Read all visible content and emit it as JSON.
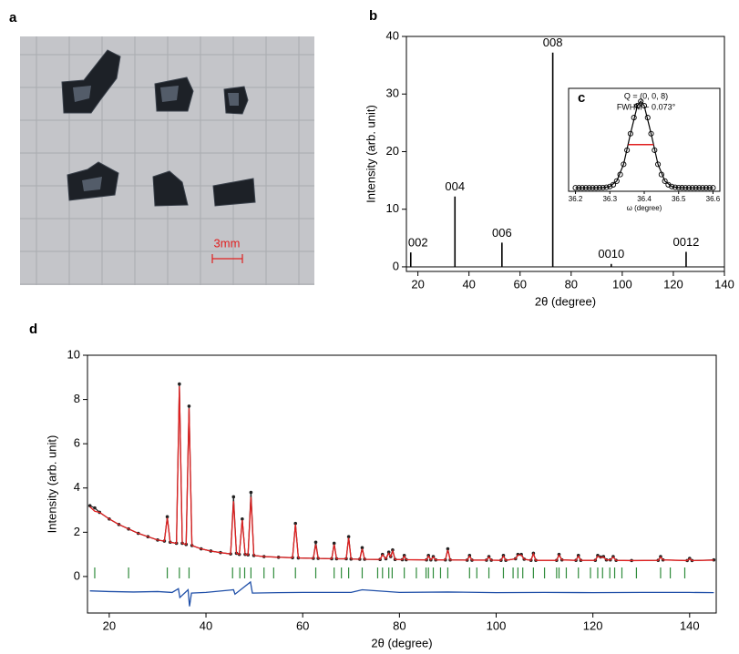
{
  "photo": {
    "panel": "a",
    "scale_label": "3mm"
  },
  "chart_data": [
    {
      "type": "stem",
      "panel": "b",
      "xlabel": "2θ (degree)",
      "ylabel": "Intensity (arb. unit)",
      "color": "#000000",
      "x": [
        17.2,
        34.5,
        52.9,
        72.8,
        95.7,
        125.0
      ],
      "values": [
        2.5,
        12.2,
        4.2,
        37.2,
        0.5,
        2.6
      ],
      "peak_labels": [
        "002",
        "004",
        "006",
        "008",
        "0010",
        "0012"
      ],
      "xlim": [
        15.5,
        140
      ],
      "ylim": [
        -0.8,
        40
      ],
      "xticks": [
        20,
        40,
        60,
        80,
        100,
        120,
        140
      ],
      "yticks": [
        0,
        10,
        20,
        30,
        40
      ]
    },
    {
      "type": "scatter",
      "panel": "c",
      "xlabel": "ω (degree)",
      "annotations": [
        "Q = (0, 0, 8)",
        "FWHM ~ 0.073°"
      ],
      "color": "#000000",
      "x": [
        36.2,
        36.21,
        36.22,
        36.23,
        36.24,
        36.25,
        36.26,
        36.27,
        36.28,
        36.29,
        36.3,
        36.31,
        36.32,
        36.33,
        36.34,
        36.35,
        36.36,
        36.37,
        36.38,
        36.39,
        36.4,
        36.41,
        36.42,
        36.43,
        36.44,
        36.45,
        36.46,
        36.47,
        36.48,
        36.49,
        36.5,
        36.51,
        36.52,
        36.53,
        36.54,
        36.55,
        36.56,
        36.57,
        36.58,
        36.59,
        36.6
      ],
      "values": [
        0,
        0,
        0,
        0,
        0,
        0,
        0,
        0.001,
        0.002,
        0.006,
        0.015,
        0.036,
        0.078,
        0.154,
        0.272,
        0.435,
        0.626,
        0.812,
        0.949,
        1,
        0.949,
        0.812,
        0.626,
        0.435,
        0.272,
        0.154,
        0.078,
        0.036,
        0.015,
        0.006,
        0.002,
        0.001,
        0,
        0,
        0,
        0,
        0,
        0,
        0,
        0,
        0
      ],
      "fit": {
        "color": "#000000",
        "x": [
          36.2,
          36.25,
          36.28,
          36.3,
          36.32,
          36.34,
          36.36,
          36.38,
          36.39,
          36.4,
          36.42,
          36.44,
          36.46,
          36.48,
          36.5,
          36.53,
          36.6
        ],
        "values": [
          0,
          0,
          0.002,
          0.015,
          0.078,
          0.272,
          0.626,
          0.949,
          1,
          0.949,
          0.626,
          0.272,
          0.078,
          0.015,
          0.002,
          0,
          0
        ]
      },
      "fwhm_marker": {
        "color": "#e02020",
        "x": [
          36.354,
          36.427
        ],
        "values": [
          0.5,
          0.5
        ]
      },
      "xlim": [
        36.18,
        36.62
      ],
      "ylim": [
        -0.04,
        1.15
      ],
      "xticks": [
        36.2,
        36.3,
        36.4,
        36.5,
        36.6
      ]
    },
    {
      "type": "line",
      "panel": "d",
      "xlabel": "2θ (degree)",
      "ylabel": "Intensity (arb. unit)",
      "observed": {
        "color": "#222222",
        "x": [
          16,
          17,
          18,
          20,
          22,
          24,
          26,
          28,
          30,
          31.4,
          32,
          32.6,
          33.9,
          34.5,
          35.1,
          35.9,
          36.5,
          37.1,
          39,
          41,
          43,
          45.1,
          45.7,
          46.3,
          46.9,
          47.5,
          48.1,
          48.7,
          49.3,
          49.9,
          52,
          55,
          57.9,
          58.5,
          59.1,
          62.2,
          62.7,
          63.2,
          66,
          66.5,
          67,
          69,
          69.5,
          70,
          71.8,
          72.3,
          72.8,
          76,
          76.5,
          77.2,
          77.8,
          78.2,
          78.6,
          79.1,
          80.6,
          81,
          81.4,
          85.6,
          86,
          86.5,
          87,
          87.5,
          89.5,
          90,
          90.5,
          94,
          94.5,
          95,
          98,
          98.5,
          99,
          101,
          101.5,
          102,
          104,
          104.5,
          105.2,
          105.8,
          107.2,
          107.7,
          108.2,
          112.5,
          113,
          113.6,
          116.5,
          117,
          117.5,
          120.5,
          121,
          121.6,
          122.2,
          122.8,
          123.6,
          124.2,
          124.8,
          128,
          133.5,
          134,
          134.5,
          139.5,
          140,
          140.5,
          145
        ],
        "values": [
          3.2,
          3.1,
          2.9,
          2.6,
          2.35,
          2.15,
          1.95,
          1.8,
          1.65,
          1.6,
          2.7,
          1.55,
          1.5,
          8.7,
          1.5,
          1.45,
          7.7,
          1.4,
          1.25,
          1.15,
          1.08,
          1.02,
          3.6,
          1.05,
          1.0,
          2.6,
          1.0,
          0.98,
          3.8,
          0.95,
          0.9,
          0.87,
          0.85,
          2.4,
          0.84,
          0.82,
          1.55,
          0.82,
          0.8,
          1.5,
          0.8,
          0.8,
          1.8,
          0.79,
          0.78,
          1.3,
          0.78,
          0.77,
          1.0,
          0.8,
          1.1,
          0.9,
          1.2,
          0.77,
          0.76,
          0.95,
          0.76,
          0.75,
          0.95,
          0.75,
          0.9,
          0.75,
          0.75,
          1.25,
          0.75,
          0.74,
          0.95,
          0.74,
          0.74,
          0.9,
          0.74,
          0.73,
          0.95,
          0.73,
          0.8,
          1.0,
          1.0,
          0.78,
          0.73,
          1.05,
          0.73,
          0.73,
          1.0,
          0.75,
          0.73,
          0.95,
          0.73,
          0.73,
          0.95,
          0.88,
          0.9,
          0.75,
          0.75,
          0.9,
          0.73,
          0.72,
          0.73,
          0.9,
          0.75,
          0.72,
          0.82,
          0.72,
          0.75
        ]
      },
      "calculated": {
        "color": "#e02020",
        "x": [
          16,
          17,
          18,
          20,
          22,
          24,
          26,
          28,
          30,
          31.4,
          32,
          32.6,
          33.9,
          34.5,
          35.1,
          35.9,
          36.5,
          37.1,
          39,
          41,
          43,
          45.1,
          45.7,
          46.3,
          46.9,
          47.5,
          48.1,
          48.7,
          49.3,
          49.9,
          52,
          55,
          57.9,
          58.5,
          59.1,
          62.2,
          62.7,
          63.2,
          66,
          66.5,
          67,
          69,
          69.5,
          70,
          71.8,
          72.3,
          72.8,
          76,
          76.5,
          77.2,
          77.8,
          78.2,
          78.6,
          79.1,
          80.6,
          81,
          81.4,
          85.6,
          86,
          86.5,
          87,
          87.5,
          89.5,
          90,
          90.5,
          94,
          94.5,
          95,
          98,
          98.5,
          99,
          101,
          101.5,
          102,
          104,
          104.5,
          105.2,
          105.8,
          107.2,
          107.7,
          108.2,
          112.5,
          113,
          113.6,
          116.5,
          117,
          117.5,
          120.5,
          121,
          121.6,
          122.2,
          122.8,
          123.6,
          124.2,
          124.8,
          128,
          133.5,
          134,
          134.5,
          139.5,
          140,
          140.5,
          145
        ],
        "values": [
          3.15,
          2.95,
          2.9,
          2.6,
          2.35,
          2.15,
          1.95,
          1.8,
          1.65,
          1.6,
          2.65,
          1.55,
          1.5,
          8.6,
          1.5,
          1.45,
          7.6,
          1.4,
          1.25,
          1.15,
          1.08,
          1.02,
          3.4,
          1.05,
          1.0,
          2.55,
          1.0,
          0.98,
          3.6,
          0.95,
          0.9,
          0.87,
          0.85,
          2.35,
          0.84,
          0.82,
          1.45,
          0.82,
          0.8,
          1.45,
          0.8,
          0.8,
          1.75,
          0.79,
          0.78,
          1.25,
          0.78,
          0.77,
          0.98,
          0.8,
          1.05,
          0.9,
          1.15,
          0.77,
          0.76,
          0.92,
          0.76,
          0.75,
          0.92,
          0.75,
          0.88,
          0.75,
          0.75,
          1.2,
          0.75,
          0.74,
          0.92,
          0.74,
          0.74,
          0.88,
          0.74,
          0.73,
          0.92,
          0.73,
          0.8,
          0.97,
          0.97,
          0.78,
          0.73,
          1.02,
          0.73,
          0.73,
          0.97,
          0.75,
          0.73,
          0.92,
          0.73,
          0.73,
          0.92,
          0.86,
          0.88,
          0.75,
          0.75,
          0.88,
          0.73,
          0.72,
          0.73,
          0.87,
          0.75,
          0.72,
          0.8,
          0.72,
          0.74
        ]
      },
      "difference": {
        "color": "#1f4fa8",
        "x": [
          16,
          20,
          25,
          30,
          33,
          34.3,
          34.6,
          36.3,
          36.6,
          37,
          40,
          45.7,
          46,
          49.2,
          49.6,
          55,
          60,
          70,
          72.3,
          80,
          90,
          100,
          110,
          120,
          130,
          140,
          145
        ],
        "values": [
          -0.65,
          -0.68,
          -0.7,
          -0.68,
          -0.72,
          -0.55,
          -0.95,
          -0.6,
          -1.35,
          -0.75,
          -0.72,
          -0.6,
          -0.8,
          -0.25,
          -0.75,
          -0.73,
          -0.72,
          -0.72,
          -0.6,
          -0.72,
          -0.7,
          -0.73,
          -0.72,
          -0.73,
          -0.72,
          -0.72,
          -0.73
        ]
      },
      "bragg_positions": {
        "color": "#2e8b3a",
        "x": [
          17,
          24,
          32,
          34.5,
          36.5,
          45.5,
          47,
          48,
          49.3,
          52,
          54,
          58.5,
          62.7,
          66.5,
          68,
          69.5,
          72.3,
          75.5,
          76.5,
          77.8,
          78.5,
          81,
          83.5,
          85.5,
          86,
          87,
          88.5,
          90,
          94.5,
          96,
          98.5,
          101.5,
          103.5,
          104.5,
          105.5,
          107.7,
          110,
          112.5,
          113,
          114.5,
          117,
          119.5,
          121,
          122,
          123.5,
          124.5,
          126,
          129,
          134,
          136,
          139
        ]
      },
      "xlim": [
        15.5,
        145.5
      ],
      "ylim": [
        -1.65,
        10
      ],
      "xticks": [
        20,
        40,
        60,
        80,
        100,
        120,
        140
      ],
      "yticks": [
        0,
        2,
        4,
        6,
        8,
        10
      ]
    }
  ]
}
